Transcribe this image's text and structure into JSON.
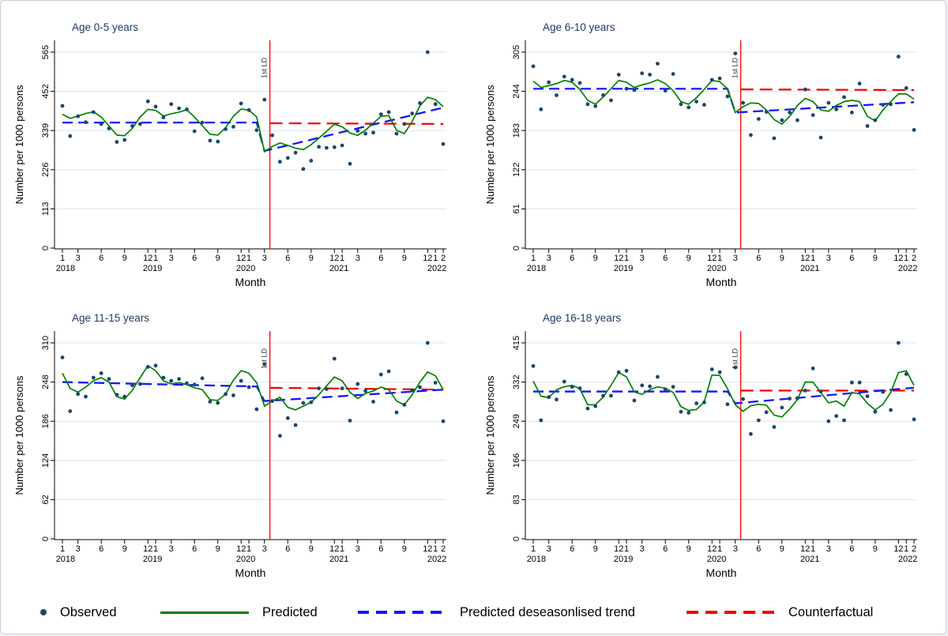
{
  "figure": {
    "vline_label": "1st LD",
    "colors": {
      "observed_dot": "#1a476f",
      "predicted_green": "#008000",
      "trend_blue": "#1414ff",
      "counterfactual_red": "#f20000",
      "lockdown_line_red": "#ff0000",
      "gridline": "#dde4ee",
      "panel_title": "#203a66",
      "axis": "#000000"
    },
    "legend": [
      {
        "label": "Observed",
        "marker": "navy-dot"
      },
      {
        "label": "Predicted",
        "marker": "green-solid-line"
      },
      {
        "label": "Predicted deseasonlised trend",
        "marker": "blue-dashed-line"
      },
      {
        "label": "Counterfactual",
        "marker": "red-dashed-line"
      }
    ],
    "x_axis": {
      "title": "Month",
      "months_span": "Jan 2018 to Feb 2022, monthly (50 points)",
      "ticks": [
        {
          "p": 0,
          "l": "1"
        },
        {
          "p": 2,
          "l": "3"
        },
        {
          "p": 5,
          "l": "6"
        },
        {
          "p": 8,
          "l": "9"
        },
        {
          "p": 11,
          "l": "12"
        },
        {
          "p": 12,
          "l": "1"
        },
        {
          "p": 14,
          "l": "3"
        },
        {
          "p": 17,
          "l": "6"
        },
        {
          "p": 20,
          "l": "9"
        },
        {
          "p": 23,
          "l": "12"
        },
        {
          "p": 24,
          "l": "1"
        },
        {
          "p": 26,
          "l": "3"
        },
        {
          "p": 29,
          "l": "6"
        },
        {
          "p": 32,
          "l": "9"
        },
        {
          "p": 35,
          "l": "12"
        },
        {
          "p": 36,
          "l": "1"
        },
        {
          "p": 38,
          "l": "3"
        },
        {
          "p": 41,
          "l": "6"
        },
        {
          "p": 44,
          "l": "9"
        },
        {
          "p": 47,
          "l": "12"
        },
        {
          "p": 48,
          "l": "1"
        },
        {
          "p": 49,
          "l": "2"
        }
      ],
      "years": [
        {
          "p": 0.4,
          "l": "2018"
        },
        {
          "p": 11.6,
          "l": "2019"
        },
        {
          "p": 23.6,
          "l": "2020"
        },
        {
          "p": 35.6,
          "l": "2021"
        },
        {
          "p": 48.2,
          "l": "2022"
        }
      ]
    }
  },
  "chart_data": [
    {
      "type": "scatter",
      "title": "Age 0-5 years",
      "xlabel": "Month",
      "ylabel": "Number per 1000 persons",
      "ylim": [
        0,
        565
      ],
      "yticks": [
        0,
        113,
        226,
        339,
        452,
        565
      ],
      "lockdown_month_index": 26.7,
      "observed": [
        410,
        323,
        380,
        363,
        392,
        358,
        345,
        306,
        312,
        352,
        358,
        423,
        408,
        377,
        415,
        403,
        400,
        337,
        362,
        310,
        307,
        343,
        350,
        417,
        398,
        340,
        428,
        325,
        249,
        260,
        275,
        228,
        252,
        292,
        289,
        291,
        296,
        243,
        338,
        330,
        333,
        386,
        392,
        330,
        358,
        388,
        418,
        565,
        415,
        300
      ],
      "predicted": [
        386,
        374,
        381,
        388,
        393,
        378,
        352,
        326,
        324,
        345,
        378,
        400,
        397,
        381,
        387,
        392,
        399,
        378,
        353,
        328,
        326,
        347,
        380,
        401,
        398,
        378,
        278,
        293,
        303,
        296,
        288,
        284,
        298,
        317,
        337,
        357,
        350,
        332,
        325,
        340,
        360,
        380,
        382,
        340,
        330,
        365,
        410,
        435,
        428,
        408
      ],
      "trend": {
        "pre_start": 362,
        "pre_end": 362,
        "post_start": 280,
        "post_end": 405
      },
      "counterfactual": {
        "start": 360,
        "end": 358
      }
    },
    {
      "type": "scatter",
      "title": "Age 6-10 years",
      "xlabel": "Month",
      "ylabel": "Number per 1000 persons",
      "ylim": [
        0,
        305
      ],
      "yticks": [
        0,
        61,
        122,
        183,
        244,
        305
      ],
      "lockdown_month_index": 26.7,
      "observed": [
        283,
        216,
        258,
        238,
        267,
        262,
        257,
        224,
        221,
        238,
        230,
        270,
        248,
        246,
        272,
        270,
        287,
        245,
        271,
        224,
        219,
        228,
        223,
        262,
        264,
        236,
        303,
        226,
        176,
        201,
        212,
        171,
        199,
        211,
        199,
        247,
        207,
        172,
        226,
        216,
        235,
        211,
        256,
        190,
        199,
        223,
        224,
        298,
        249,
        184
      ],
      "predicted": [
        260,
        250,
        253,
        256,
        261,
        258,
        247,
        230,
        224,
        235,
        248,
        261,
        258,
        250,
        254,
        257,
        262,
        256,
        245,
        228,
        224,
        234,
        247,
        261,
        259,
        248,
        211,
        220,
        226,
        225,
        215,
        200,
        193,
        205,
        222,
        233,
        228,
        215,
        213,
        222,
        228,
        230,
        228,
        205,
        198,
        215,
        228,
        240,
        240,
        232
      ],
      "trend": {
        "pre_start": 248,
        "pre_end": 248,
        "post_start": 211,
        "post_end": 227
      },
      "counterfactual": {
        "start": 247,
        "end": 246
      }
    },
    {
      "type": "scatter",
      "title": "Age 11-15 years",
      "xlabel": "Month",
      "ylabel": "Number per 1000 persons",
      "ylim": [
        0,
        310
      ],
      "yticks": [
        0,
        62,
        124,
        186,
        248,
        310
      ],
      "lockdown_month_index": 26.7,
      "observed": [
        287,
        202,
        229,
        225,
        255,
        262,
        253,
        228,
        225,
        243,
        245,
        272,
        274,
        255,
        250,
        253,
        246,
        244,
        254,
        217,
        215,
        229,
        227,
        250,
        240,
        205,
        276,
        218,
        163,
        191,
        180,
        215,
        216,
        238,
        237,
        285,
        238,
        187,
        245,
        234,
        217,
        260,
        265,
        200,
        212,
        235,
        240,
        310,
        247,
        186
      ],
      "predicted": [
        262,
        238,
        232,
        240,
        250,
        255,
        248,
        225,
        221,
        235,
        255,
        274,
        266,
        250,
        245,
        247,
        244,
        239,
        236,
        220,
        219,
        229,
        251,
        266,
        262,
        247,
        210,
        218,
        224,
        208,
        204,
        210,
        216,
        228,
        242,
        256,
        250,
        232,
        222,
        230,
        234,
        240,
        236,
        218,
        212,
        228,
        248,
        264,
        258,
        236
      ],
      "trend": {
        "pre_start": 248,
        "pre_end": 241,
        "post_start": 218,
        "post_end": 236
      },
      "counterfactual": {
        "start": 239,
        "end": 236
      }
    },
    {
      "type": "scatter",
      "title": "Age 16-18 years",
      "xlabel": "Month",
      "ylabel": "Number per 1000 persons",
      "ylim": [
        0,
        415
      ],
      "yticks": [
        0,
        83,
        166,
        249,
        332,
        415
      ],
      "lockdown_month_index": 26.7,
      "observed": [
        366,
        251,
        300,
        295,
        333,
        322,
        319,
        276,
        281,
        303,
        303,
        353,
        356,
        293,
        325,
        323,
        343,
        317,
        322,
        269,
        267,
        287,
        289,
        359,
        353,
        285,
        363,
        296,
        222,
        251,
        268,
        237,
        278,
        297,
        298,
        314,
        361,
        312,
        249,
        260,
        251,
        331,
        331,
        302,
        269,
        311,
        273,
        415,
        349,
        253
      ],
      "predicted": [
        334,
        302,
        299,
        316,
        322,
        325,
        318,
        284,
        284,
        300,
        325,
        352,
        343,
        311,
        306,
        316,
        322,
        319,
        310,
        280,
        272,
        274,
        290,
        347,
        346,
        318,
        284,
        270,
        282,
        285,
        283,
        262,
        258,
        275,
        295,
        332,
        332,
        310,
        288,
        292,
        281,
        310,
        307,
        287,
        273,
        285,
        310,
        352,
        356,
        325
      ],
      "trend": {
        "pre_start": 312,
        "pre_end": 312,
        "post_start": 287,
        "post_end": 320
      },
      "counterfactual": {
        "start": 314,
        "end": 314
      }
    }
  ]
}
